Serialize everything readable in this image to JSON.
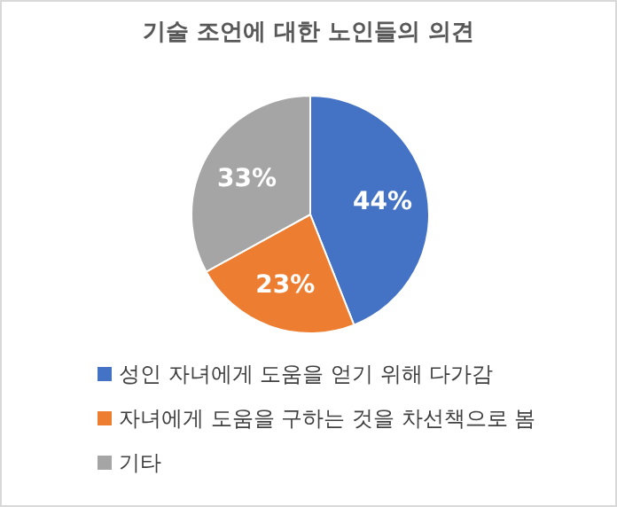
{
  "chart_data": {
    "type": "pie",
    "title": "기술 조언에 대한 노인들의 의견",
    "categories": [
      "성인 자녀에게 도움을 얻기 위해 다가감",
      "자녀에게 도움을 구하는 것을 차선책으로 봄",
      "기타"
    ],
    "values": [
      44,
      23,
      33
    ],
    "colors": [
      "#4472c4",
      "#ed7d31",
      "#a5a5a5"
    ],
    "value_labels": [
      "44%",
      "23%",
      "33%"
    ],
    "legend": "bottom"
  }
}
